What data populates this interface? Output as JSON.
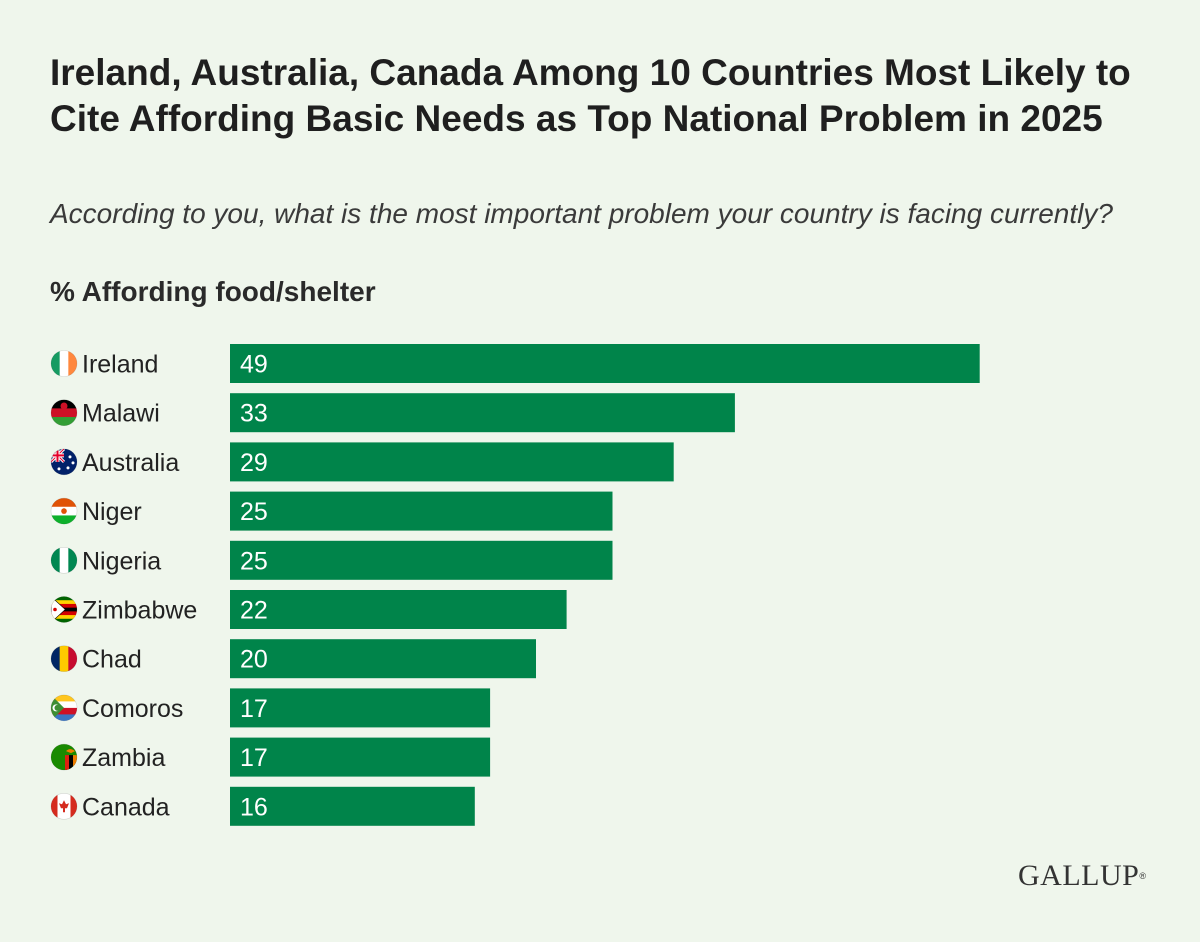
{
  "header": {
    "title": "Ireland, Australia, Canada Among 10 Countries Most Likely to Cite Affording Basic Needs as Top National Problem in 2025",
    "subtitle": "According to you, what is the most important problem your country is facing currently?",
    "measure": "% Affording food/shelter"
  },
  "colors": {
    "background": "#eff6ec",
    "bar": "#00844a",
    "bar_label": "#ffffff",
    "text": "#222222"
  },
  "chart_data": {
    "type": "bar",
    "orientation": "horizontal",
    "title": "Ireland, Australia, Canada Among 10 Countries Most Likely to Cite Affording Basic Needs as Top National Problem in 2025",
    "subtitle": "According to you, what is the most important problem your country is facing currently?",
    "xlabel": "% Affording food/shelter",
    "ylabel": "",
    "categories": [
      "Ireland",
      "Malawi",
      "Australia",
      "Niger",
      "Nigeria",
      "Zimbabwe",
      "Chad",
      "Comoros",
      "Zambia",
      "Canada"
    ],
    "values": [
      49,
      33,
      29,
      25,
      25,
      22,
      20,
      17,
      17,
      16
    ],
    "flag_icons": [
      "ireland-flag-icon",
      "malawi-flag-icon",
      "australia-flag-icon",
      "niger-flag-icon",
      "nigeria-flag-icon",
      "zimbabwe-flag-icon",
      "chad-flag-icon",
      "comoros-flag-icon",
      "zambia-flag-icon",
      "canada-flag-icon"
    ],
    "data_labels": true,
    "grid": false,
    "legend": "none"
  },
  "logo": {
    "text": "GALLUP",
    "mark": "®"
  }
}
